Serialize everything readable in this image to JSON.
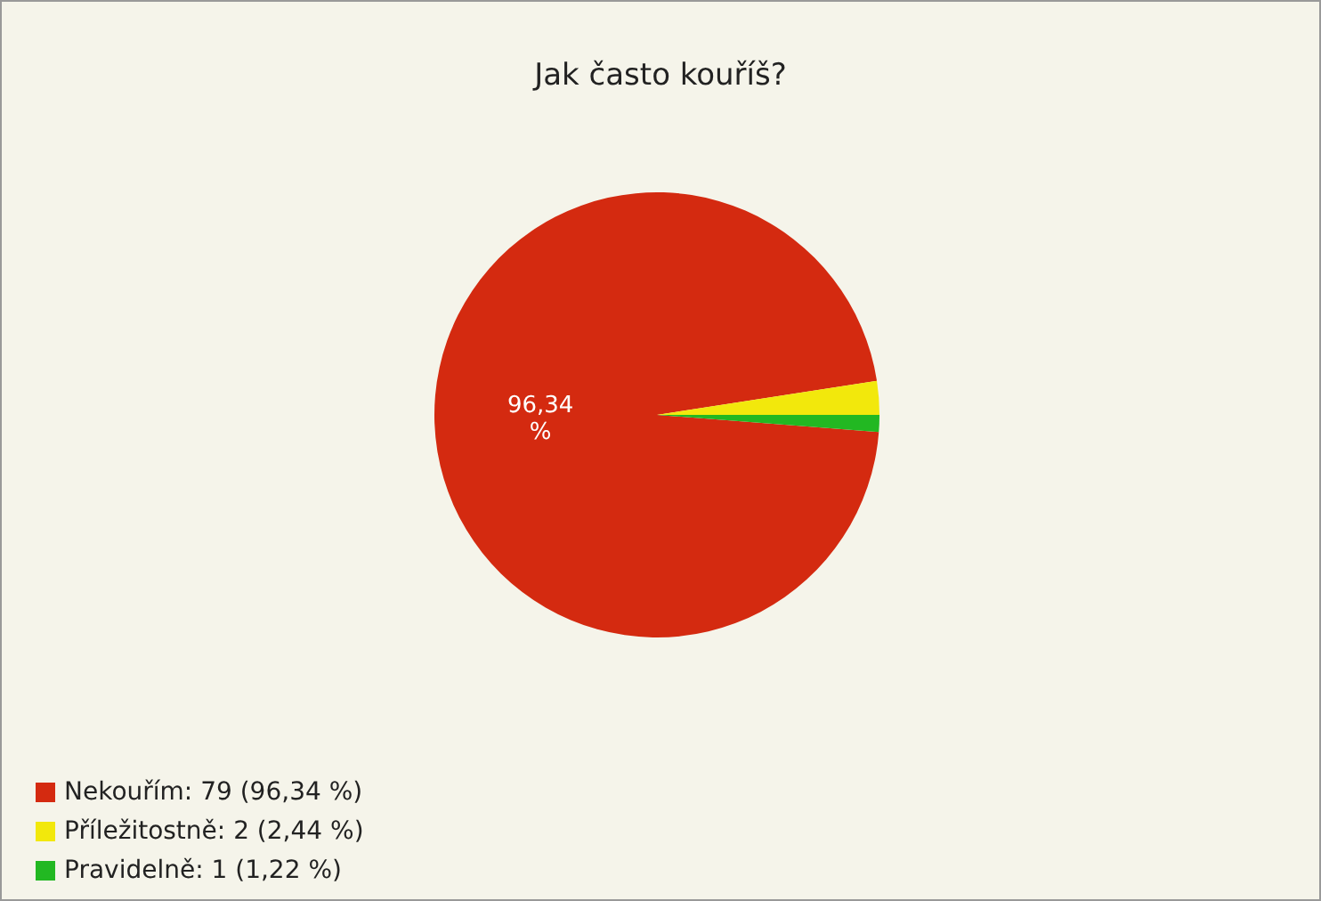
{
  "chart_data": {
    "type": "pie",
    "title": "Jak často kouříš?",
    "categories": [
      "Nekouřím: 79 (96,34 %)",
      "Příležitostně: 2 (2,44 %)",
      "Pravidelně: 1 (1,22 %)"
    ],
    "values": [
      96.34,
      2.44,
      1.22
    ],
    "colors": [
      "#d42a10",
      "#f2e80c",
      "#22b822"
    ],
    "value_labels": [
      "96,34 %",
      null,
      null
    ],
    "legend": "bottom left"
  }
}
